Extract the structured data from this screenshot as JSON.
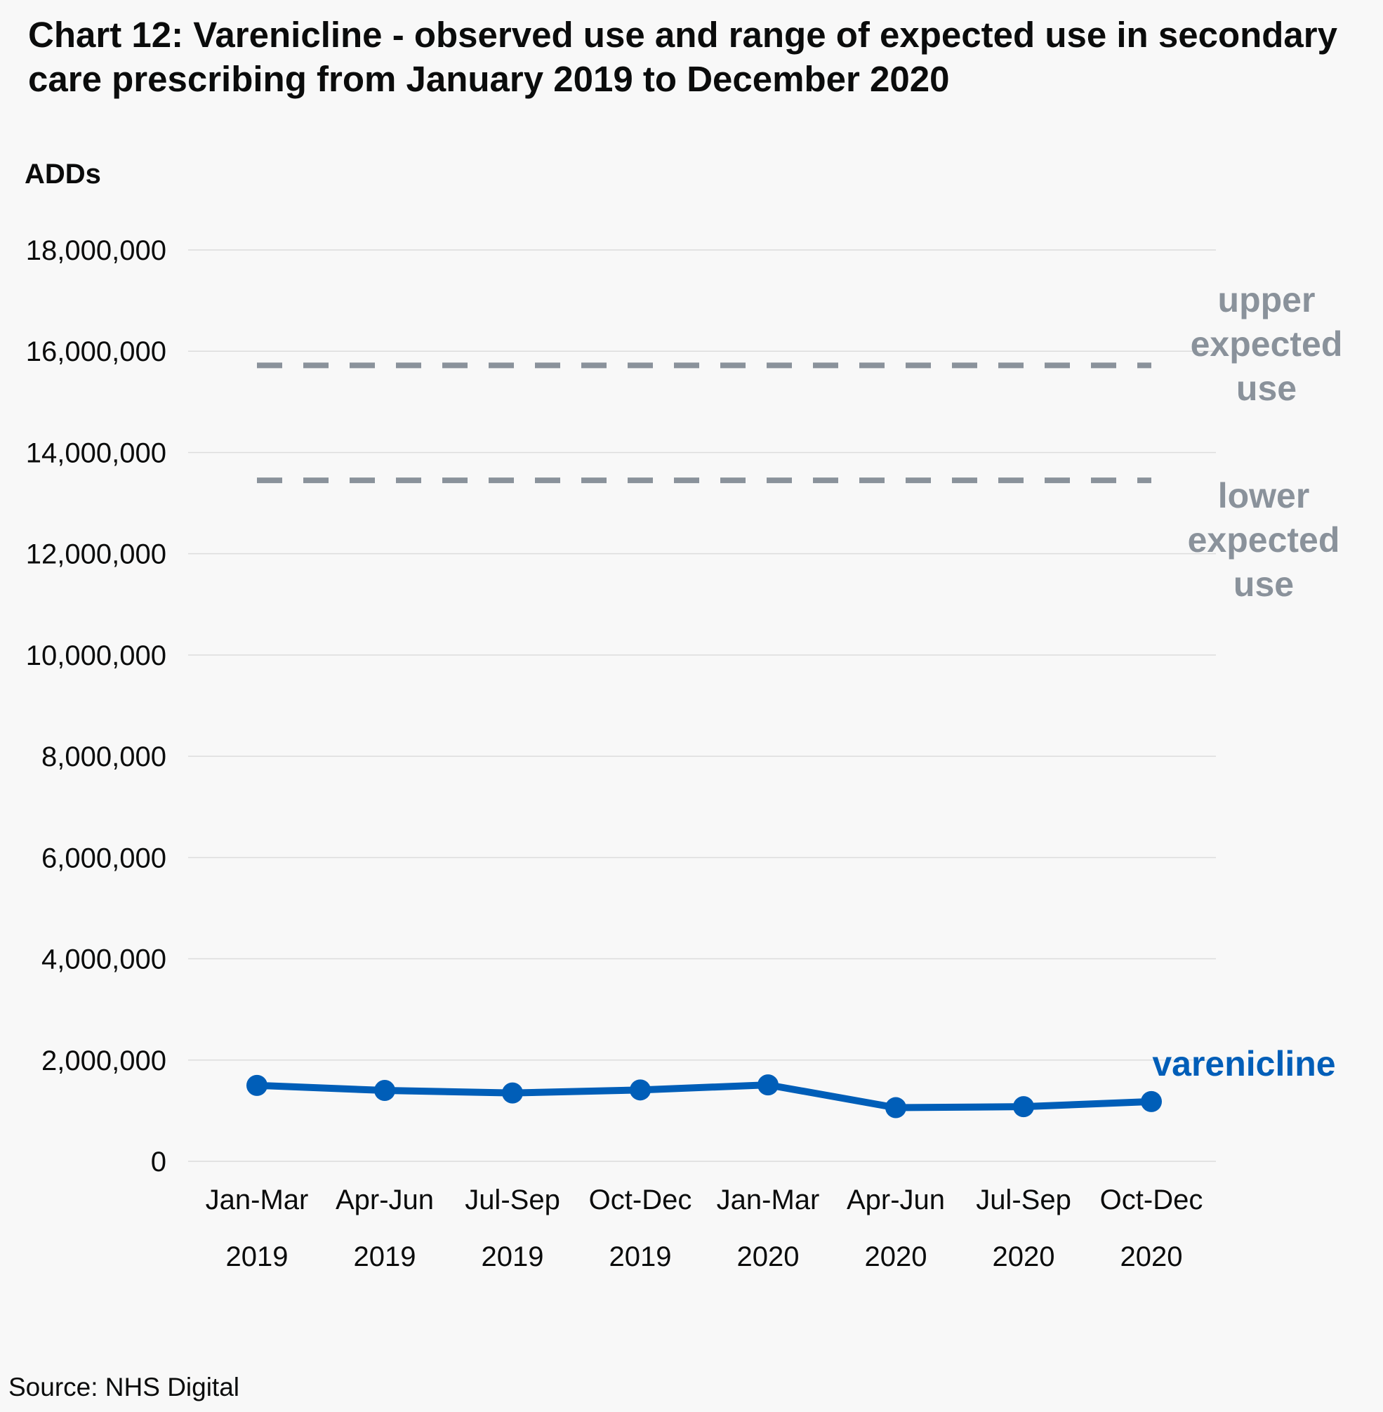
{
  "chart_data": {
    "type": "line",
    "title": "Chart 12: Varenicline - observed use and range of expected use in secondary care prescribing from January 2019 to December 2020",
    "ylabel": "ADDs",
    "xlabel": "",
    "ylim": [
      0,
      18000000
    ],
    "yticks": [
      0,
      2000000,
      4000000,
      6000000,
      8000000,
      10000000,
      12000000,
      14000000,
      16000000,
      18000000
    ],
    "ytick_labels": [
      "0",
      "2,000,000",
      "4,000,000",
      "6,000,000",
      "8,000,000",
      "10,000,000",
      "12,000,000",
      "14,000,000",
      "16,000,000",
      "18,000,000"
    ],
    "categories": [
      [
        "Jan-Mar",
        "2019"
      ],
      [
        "Apr-Jun",
        "2019"
      ],
      [
        "Jul-Sep",
        "2019"
      ],
      [
        "Oct-Dec",
        "2019"
      ],
      [
        "Jan-Mar",
        "2020"
      ],
      [
        "Apr-Jun",
        "2020"
      ],
      [
        "Jul-Sep",
        "2020"
      ],
      [
        "Oct-Dec",
        "2020"
      ]
    ],
    "grid": "horizontal",
    "series": [
      {
        "name": "varenicline",
        "style": "solid-with-markers",
        "color": "#005eb8",
        "values": [
          1500000,
          1400000,
          1350000,
          1410000,
          1510000,
          1060000,
          1080000,
          1180000
        ]
      },
      {
        "name": "upper expected use",
        "style": "dashed",
        "color": "#8a929b",
        "values": [
          15720000,
          15720000,
          15720000,
          15720000,
          15720000,
          15720000,
          15720000,
          15720000
        ]
      },
      {
        "name": "lower expected use",
        "style": "dashed",
        "color": "#8a929b",
        "values": [
          13450000,
          13450000,
          13450000,
          13450000,
          13450000,
          13450000,
          13450000,
          13450000
        ]
      }
    ],
    "series_labels": [
      [
        "varenicline"
      ],
      [
        "upper",
        "expected",
        "use"
      ],
      [
        "lower",
        "expected",
        "use"
      ]
    ],
    "source": "Source: NHS Digital"
  }
}
